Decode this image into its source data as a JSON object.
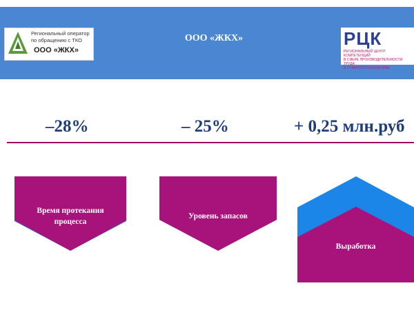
{
  "header": {
    "title": "ООО «ЖКХ»",
    "logo_left": {
      "line1": "Региональный оператор",
      "line2": "по обращению с ТКО",
      "line3": "ООО «ЖКХ»"
    },
    "logo_right": {
      "letters": "РЦК",
      "line1": "РЕГИОНАЛЬНЫЙ ЦЕНТР КОМПЕТЕНЦИЙ",
      "line2": "В СФЕРЕ ПРОИЗВОДИТЕЛЬНОСТИ ТРУДА",
      "line3": "В СТАВРОПОЛЬСКОМ КРАЕ"
    },
    "color": "#4a86d1"
  },
  "metrics": [
    "–28%",
    "– 25%",
    "+ 0,25 млн.руб"
  ],
  "shapes": [
    {
      "line1": "Время протекания",
      "line2": "процесса"
    },
    {
      "label": "Уровень запасов"
    },
    {
      "label": "Выработка"
    }
  ],
  "colors": {
    "magenta": "#a8137b",
    "blue": "#1c86e8",
    "metric_text": "#1f3c7a",
    "divider": "#a0005f"
  }
}
